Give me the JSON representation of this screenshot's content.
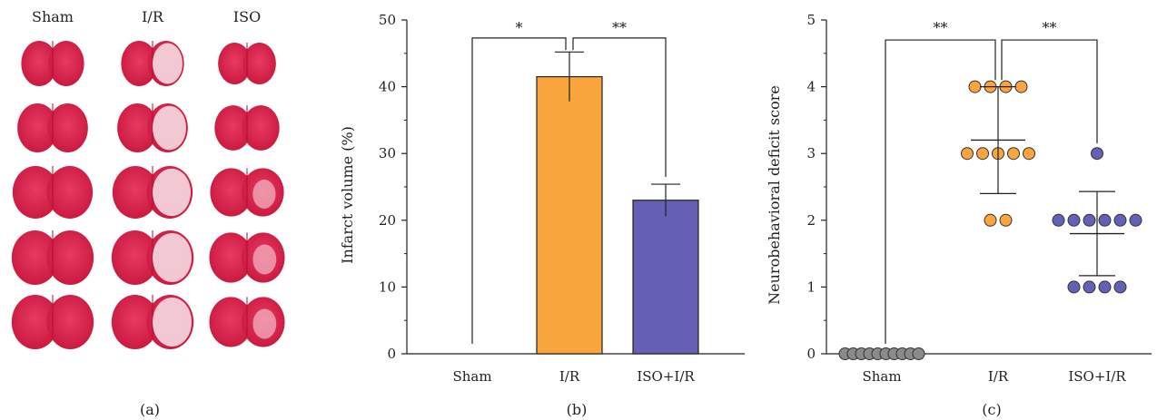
{
  "panel_a": {
    "columns": [
      "Sham",
      "I/R",
      "ISO"
    ],
    "caption": "(a)",
    "slices_per_column": 5
  },
  "panel_b": {
    "caption": "(b)",
    "ylabel": "Infarct volume (%)"
  },
  "panel_c": {
    "caption": "(c)",
    "ylabel": "Neurobehavioral deficit score"
  },
  "colors": {
    "ir": "#f9a53d",
    "iso": "#6460b5",
    "sham": "#8a8a8a",
    "slice": "#d8244b"
  },
  "chart_data": [
    {
      "type": "bar",
      "title": "",
      "xlabel": "",
      "ylabel": "Infarct volume (%)",
      "categories": [
        "Sham",
        "I/R",
        "ISO+I/R"
      ],
      "values": [
        0,
        41.5,
        23.0
      ],
      "errors": [
        0,
        3.7,
        2.4
      ],
      "ylim": [
        0,
        50
      ],
      "yticks": [
        0,
        10,
        20,
        30,
        40,
        50
      ],
      "significance": [
        {
          "from": 0,
          "to": 1,
          "label": "*"
        },
        {
          "from": 1,
          "to": 2,
          "label": "**"
        }
      ],
      "grid": false
    },
    {
      "type": "scatter",
      "title": "",
      "xlabel": "",
      "ylabel": "Neurobehavioral deficit score",
      "categories": [
        "Sham",
        "I/R",
        "ISO+I/R"
      ],
      "ylim": [
        0,
        5
      ],
      "yticks": [
        0,
        1,
        2,
        3,
        4,
        5
      ],
      "groups": [
        {
          "name": "Sham",
          "points": [
            0,
            0,
            0,
            0,
            0,
            0,
            0,
            0,
            0,
            0
          ],
          "mean": 0,
          "sd": 0
        },
        {
          "name": "I/R",
          "points": [
            4,
            4,
            4,
            4,
            3,
            3,
            3,
            3,
            3,
            2,
            2
          ],
          "mean": 3.2,
          "sd": 0.8
        },
        {
          "name": "ISO+I/R",
          "points": [
            3,
            2,
            2,
            2,
            2,
            2,
            2,
            1,
            1,
            1,
            1
          ],
          "mean": 1.8,
          "sd": 0.63
        }
      ],
      "significance": [
        {
          "from": 0,
          "to": 1,
          "label": "**"
        },
        {
          "from": 1,
          "to": 2,
          "label": "**"
        }
      ],
      "grid": false
    }
  ]
}
